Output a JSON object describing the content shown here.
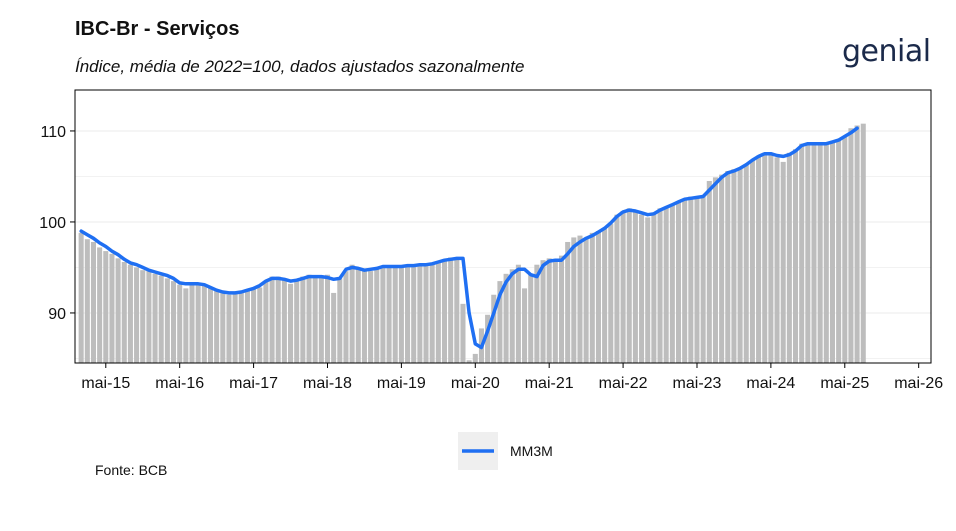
{
  "header": {
    "title": "IBC-Br - Serviços",
    "subtitle": "Índice, média de 2022=100, dados ajustados sazonalmente",
    "logo_text": "genial"
  },
  "footer": {
    "source": "Fonte: BCB"
  },
  "colors": {
    "bars": "#bdbdbd",
    "line": "#1f6ff2",
    "axis": "#000000",
    "grid": "#ebebeb"
  },
  "chart_data": {
    "type": "bar",
    "title": "IBC-Br - Serviços",
    "subtitle": "Índice, média de 2022=100, dados ajustados sazonalmente",
    "xlabel": "",
    "ylabel": "",
    "ylim": [
      84.5,
      114.5
    ],
    "xlim": [
      "2014-12",
      "2026-07"
    ],
    "yticks": [
      90,
      100,
      110
    ],
    "x_tick_labels": [
      "mai-15",
      "mai-16",
      "mai-17",
      "mai-18",
      "mai-19",
      "mai-20",
      "mai-21",
      "mai-22",
      "mai-23",
      "mai-24",
      "mai-25",
      "mai-26"
    ],
    "x_tick_dates": [
      "2015-05",
      "2016-05",
      "2017-05",
      "2018-05",
      "2019-05",
      "2020-05",
      "2021-05",
      "2022-05",
      "2023-05",
      "2024-05",
      "2025-05",
      "2026-05"
    ],
    "grid": true,
    "legend": {
      "position": "bottom",
      "entries": [
        "MM3M"
      ]
    },
    "start_month": "2015-01",
    "series": [
      {
        "kind": "bar",
        "values": [
          98.8,
          98.1,
          97.8,
          97.2,
          96.8,
          96.5,
          96.0,
          95.6,
          95.3,
          95.0,
          94.7,
          94.6,
          94.3,
          94.1,
          93.8,
          93.5,
          93.1,
          92.7,
          93.2,
          93.3,
          93.1,
          92.8,
          92.5,
          92.3,
          92.0,
          92.2,
          92.2,
          92.5,
          92.6,
          92.8,
          93.5,
          94.0,
          94.0,
          93.7,
          93.2,
          93.6,
          94.0,
          94.2,
          94.1,
          93.9,
          94.2,
          92.2,
          93.8,
          94.6,
          95.3,
          95.0,
          94.7,
          94.6,
          95.0,
          95.1,
          95.0,
          95.1,
          95.0,
          95.2,
          95.3,
          95.2,
          95.3,
          95.4,
          95.6,
          95.9,
          96.1,
          96.0,
          91.0,
          84.8,
          85.5,
          88.3,
          89.8,
          92.0,
          93.5,
          94.3,
          94.8,
          95.3,
          92.7,
          94.2,
          95.3,
          95.8,
          96.0,
          95.7,
          96.3,
          97.8,
          98.3,
          98.5,
          98.2,
          98.8,
          99.0,
          99.3,
          99.8,
          100.8,
          101.2,
          101.5,
          101.2,
          100.8,
          100.5,
          101.0,
          101.5,
          101.7,
          102.0,
          102.3,
          102.5,
          102.8,
          102.6,
          102.9,
          104.5,
          104.9,
          105.2,
          105.6,
          105.8,
          106.0,
          106.3,
          106.8,
          107.3,
          107.6,
          107.5,
          107.1,
          106.6,
          107.6,
          108.0,
          108.6,
          108.7,
          108.7,
          108.6,
          108.6,
          108.8,
          109.1,
          109.4,
          110.3,
          110.6,
          110.8
        ]
      },
      {
        "kind": "line",
        "name": "MM3M",
        "values": [
          99.0,
          98.6,
          98.2,
          97.7,
          97.3,
          96.8,
          96.4,
          95.9,
          95.5,
          95.3,
          95.0,
          94.7,
          94.5,
          94.3,
          94.1,
          93.8,
          93.3,
          93.2,
          93.2,
          93.2,
          93.1,
          92.8,
          92.5,
          92.3,
          92.2,
          92.2,
          92.3,
          92.5,
          92.7,
          93.0,
          93.5,
          93.8,
          93.8,
          93.7,
          93.5,
          93.6,
          93.8,
          94.0,
          94.0,
          94.0,
          93.9,
          93.7,
          93.8,
          94.8,
          95.0,
          94.9,
          94.7,
          94.8,
          94.9,
          95.1,
          95.1,
          95.1,
          95.1,
          95.2,
          95.2,
          95.3,
          95.3,
          95.4,
          95.6,
          95.8,
          95.9,
          96.0,
          96.0,
          90.0,
          86.6,
          86.2,
          88.0,
          90.0,
          92.0,
          93.4,
          94.3,
          94.8,
          94.8,
          94.2,
          94.0,
          95.2,
          95.7,
          95.8,
          95.8,
          96.5,
          97.3,
          97.8,
          98.2,
          98.5,
          98.9,
          99.3,
          99.9,
          100.6,
          101.1,
          101.3,
          101.2,
          101.0,
          100.8,
          100.9,
          101.3,
          101.6,
          101.9,
          102.2,
          102.5,
          102.6,
          102.7,
          102.8,
          103.5,
          104.2,
          104.9,
          105.4,
          105.6,
          105.9,
          106.3,
          106.8,
          107.2,
          107.5,
          107.5,
          107.3,
          107.2,
          107.4,
          107.8,
          108.4,
          108.6,
          108.6,
          108.6,
          108.6,
          108.8,
          109.0,
          109.4,
          109.8,
          110.3
        ]
      }
    ]
  }
}
